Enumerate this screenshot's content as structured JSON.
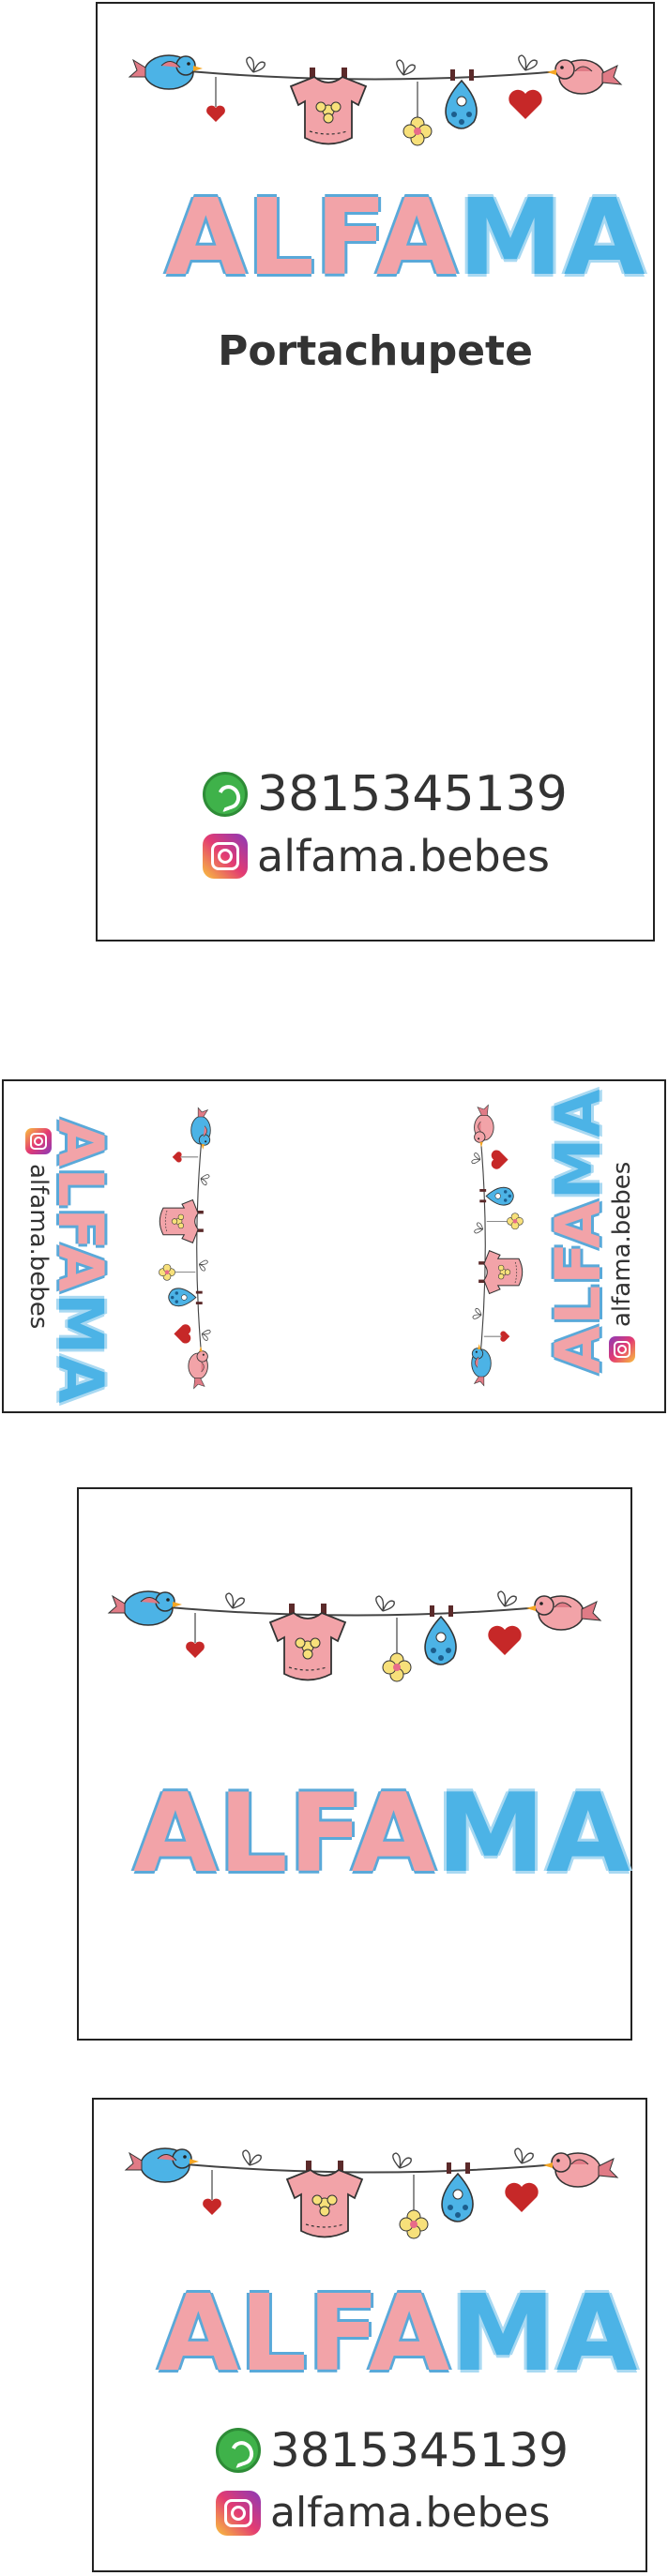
{
  "brand": {
    "part_pink": "ALFA",
    "part_blue": "MA"
  },
  "card1": {
    "subtitle": "Portachupete",
    "phone": "3815345139",
    "instagram": "alfama.bebes"
  },
  "card2": {
    "instagram_left": "alfama.bebes",
    "instagram_right": "alfama.bebes"
  },
  "card4": {
    "phone": "3815345139",
    "instagram": "alfama.bebes"
  },
  "colors": {
    "pink": "#f2a3a8",
    "blue": "#4cb3e6",
    "heart": "#c62828",
    "flower": "#f7e07a"
  },
  "icons": [
    "whatsapp-icon",
    "instagram-icon",
    "bird-icon",
    "heart-icon",
    "bodysuit-icon",
    "bib-icon",
    "flower-icon"
  ]
}
